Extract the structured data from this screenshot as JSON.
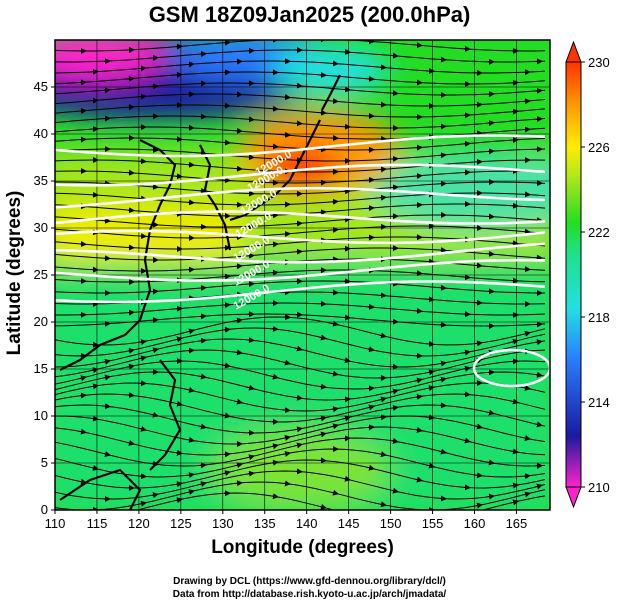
{
  "title": "GSM 18Z09Jan2025 (200.0hPa)",
  "x_axis": {
    "label": "Longitude (degrees)",
    "range": [
      110,
      169
    ],
    "ticks": [
      "110",
      "115",
      "120",
      "125",
      "130",
      "135",
      "140",
      "145",
      "150",
      "155",
      "160",
      "165"
    ]
  },
  "y_axis": {
    "label": "Latitude  (degrees)",
    "range": [
      0,
      50
    ],
    "ticks": [
      "0",
      "5",
      "10",
      "15",
      "20",
      "25",
      "30",
      "35",
      "40",
      "45"
    ]
  },
  "colorbar": {
    "range": [
      210,
      230
    ],
    "labels": [
      "230",
      "226",
      "222",
      "218",
      "214",
      "210"
    ],
    "colors": [
      "#ff22cc",
      "#1a1aa0",
      "#2a7cff",
      "#22e0e0",
      "#1fe08a",
      "#22dd22",
      "#a4e61c",
      "#ffee00",
      "#ff9900",
      "#ff3300"
    ]
  },
  "contour_labels": [
    "12000.0",
    "12000.0",
    "12000.0",
    "12000.0",
    "12000.0",
    "12000.0",
    "12000.0"
  ],
  "credits": [
    "Drawing by DCL (https://www.gfd-dennou.org/library/dcl/)",
    "Data from http://database.rish.kyoto-u.ac.jp/arch/jmadata/"
  ]
}
